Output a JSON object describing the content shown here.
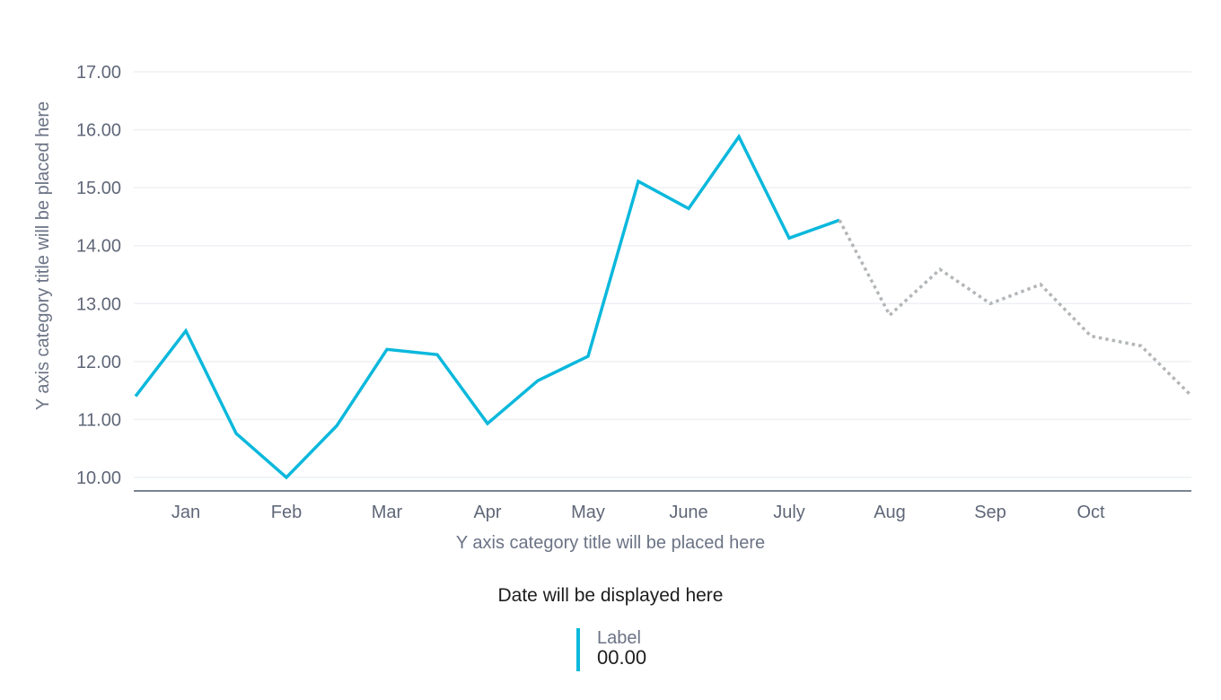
{
  "chart_data": {
    "type": "line",
    "title": "",
    "xlabel": "Y axis category title will be placed here",
    "ylabel": "Y axis category title will be placed here",
    "ylim": [
      10,
      17
    ],
    "yticks": [
      "10.00",
      "11.00",
      "12.00",
      "13.00",
      "14.00",
      "15.00",
      "16.00",
      "17.00"
    ],
    "grid": true,
    "x_tick_labels": [
      "Jan",
      "Feb",
      "Mar",
      "Apr",
      "May",
      "June",
      "July",
      "Aug",
      "Sep",
      "Oct"
    ],
    "points_per_month": 2,
    "series": [
      {
        "style": "solid",
        "color": "#0bb8dc",
        "start_index": 0,
        "values": [
          11.4,
          12.53,
          10.76,
          10.0,
          10.89,
          12.21,
          12.12,
          10.93,
          11.67,
          12.09,
          15.11,
          14.64,
          15.88,
          14.13,
          14.44
        ]
      },
      {
        "style": "dotted",
        "color": "#b3b6b8",
        "start_index": 14,
        "values": [
          14.44,
          12.8,
          13.59,
          13.0,
          13.33,
          12.44,
          12.27,
          11.41
        ]
      }
    ]
  },
  "date_label": "Date will be displayed here",
  "legend": {
    "label": "Label",
    "value": "00.00",
    "color": "#0bb8dc"
  }
}
